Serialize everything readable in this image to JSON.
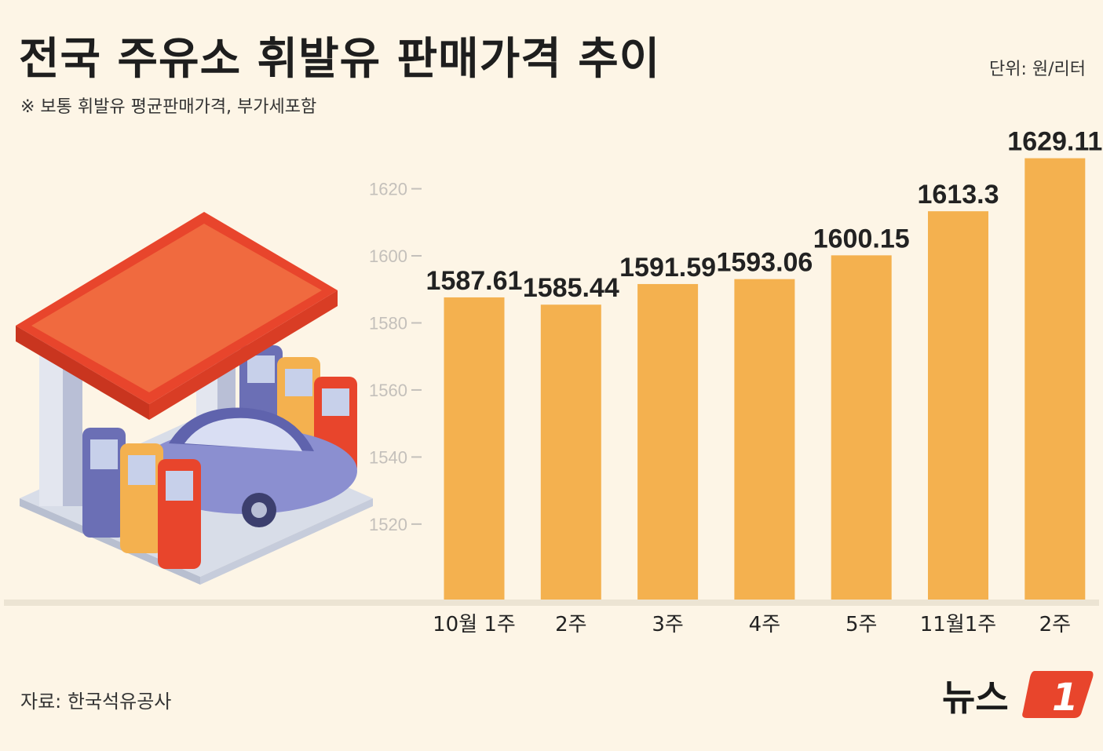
{
  "title": "전국 주유소 휘발유 판매가격 추이",
  "unit": "단위: 원/리터",
  "note": "※ 보통 휘발유 평균판매가격, 부가세포함",
  "source": "자료: 한국석유공사",
  "logo": {
    "text": "뉴스",
    "mark": "1"
  },
  "colors": {
    "bar": "#f4b14f",
    "logo_red": "#e8452c",
    "background": "#fdf5e6"
  },
  "chart_data": {
    "type": "bar",
    "categories": [
      "10월 1주",
      "2주",
      "3주",
      "4주",
      "5주",
      "11월1주",
      "2주"
    ],
    "values": [
      1587.61,
      1585.44,
      1591.59,
      1593.06,
      1600.15,
      1613.3,
      1629.11
    ],
    "value_labels": [
      "1587.61",
      "1585.44",
      "1591.59",
      "1593.06",
      "1600.15",
      "1613.3",
      "1629.11"
    ],
    "y_ticks": [
      1520,
      1540,
      1560,
      1580,
      1600,
      1620
    ],
    "ylim": [
      1497.5,
      1633
    ],
    "grid": false,
    "xlabel": "",
    "ylabel": ""
  }
}
